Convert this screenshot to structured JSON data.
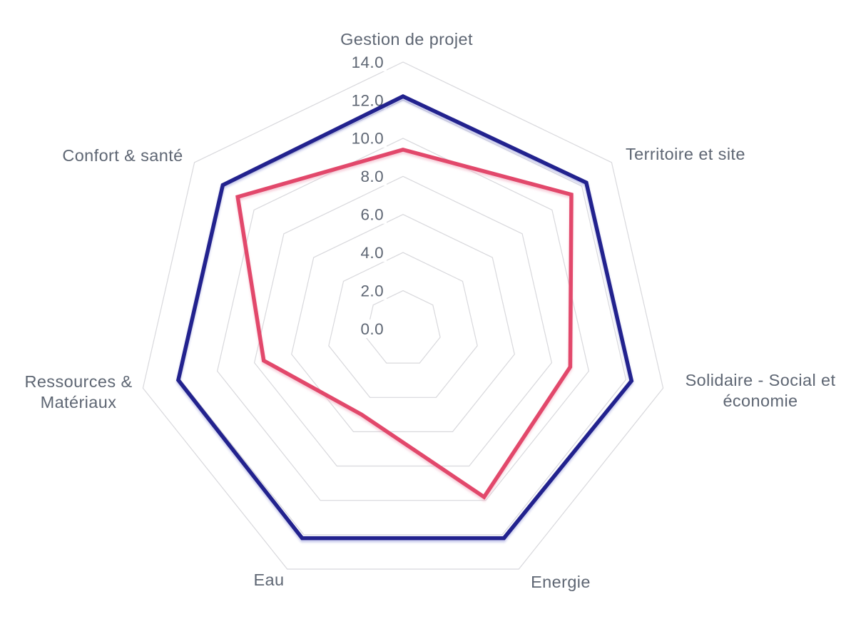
{
  "chart_data": {
    "type": "radar",
    "title": "",
    "categories": [
      "Gestion de projet",
      "Territoire et site",
      "Solidaire - Social et économie",
      "Energie",
      "Eau",
      "Ressources & Matériaux",
      "Confort & santé"
    ],
    "label_lines": [
      [
        "Gestion de projet"
      ],
      [
        "Territoire et site"
      ],
      [
        "Solidaire - Social et",
        "économie"
      ],
      [
        "Energie"
      ],
      [
        "Eau"
      ],
      [
        "Ressources &",
        "Matériaux"
      ],
      [
        "Confort & santé"
      ]
    ],
    "series": [
      {
        "name": "blue-series",
        "color": "#22228e",
        "values": [
          12.2,
          12.3,
          12.3,
          12.2,
          12.2,
          12.1,
          12.1
        ]
      },
      {
        "name": "pink-series",
        "color": "#e2486b",
        "values": [
          9.4,
          11.3,
          9.0,
          9.8,
          5.0,
          7.5,
          11.1
        ]
      }
    ],
    "radial_axis": {
      "min": 0,
      "max": 14,
      "tick_step": 2,
      "tick_labels": [
        "0.0",
        "2.0",
        "4.0",
        "6.0",
        "8.0",
        "10.0",
        "12.0",
        "14.0"
      ]
    },
    "grid": true,
    "radial_spokes": false,
    "legend": false,
    "styles": {
      "grid_color": "#d8d8dc",
      "label_color": "#5e6673",
      "background": "#ffffff"
    }
  }
}
